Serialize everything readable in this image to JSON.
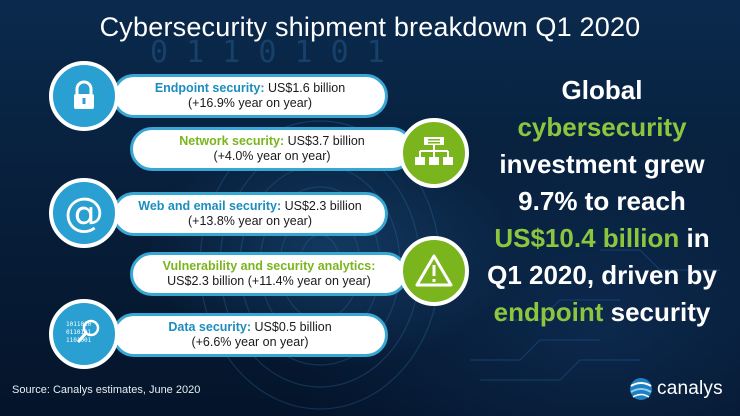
{
  "title": "Cybersecurity shipment breakdown Q1 2020",
  "segments": [
    {
      "label": "Endpoint security:",
      "value": "US$1.6 billion",
      "growth": "(+16.9% year on year)",
      "icon": "padlock-icon",
      "color": "#2a9fd1"
    },
    {
      "label": "Network security:",
      "value": "US$3.7 billion",
      "growth": "(+4.0% year on year)",
      "icon": "network-hierarchy-icon",
      "color": "#7ab51d"
    },
    {
      "label": "Web and email security:",
      "value": "US$2.3 billion",
      "growth": "(+13.8% year on year)",
      "icon": "at-sign-icon",
      "color": "#2a9fd1"
    },
    {
      "label": "Vulnerability and security analytics:",
      "value": "US$2.3 billion",
      "growth": "(+11.4% year on year)",
      "icon": "warning-triangle-icon",
      "color": "#7ab51d"
    },
    {
      "label": "Data security:",
      "value": "US$0.5 billion",
      "growth": "(+6.6% year on year)",
      "icon": "binary-magnifier-icon",
      "color": "#2a9fd1"
    }
  ],
  "headline": {
    "line1": "Global",
    "line2_hl": "cybersecurity",
    "line3": "investment grew",
    "line4": "9.7% to reach",
    "line5_hl": "US$10.4 billion",
    "line5_rest": " in",
    "line6": "Q1 2020, driven by",
    "line7_hl": "endpoint",
    "line7_rest": " security"
  },
  "source": "Source: Canalys estimates, June 2020",
  "brand": "canalys",
  "background_digits": "0 1 1 0 1 0 1"
}
